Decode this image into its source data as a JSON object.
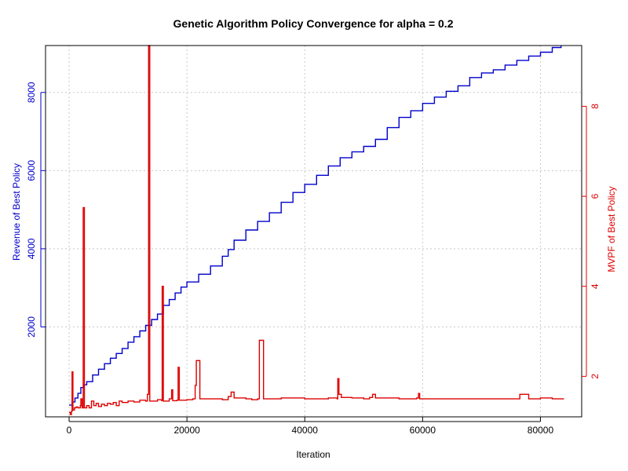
{
  "chart_data": {
    "type": "line",
    "title": "Genetic Algorithm Policy Convergence for alpha = 0.2",
    "xlabel": "Iteration",
    "ylabel_left": "Revenue of Best Policy",
    "ylabel_right": "MVPF of Best Policy",
    "xlim": [
      -4000,
      87000
    ],
    "ylim_left": [
      -300,
      9200
    ],
    "ylim_right": [
      1.1,
      9.35
    ],
    "x_ticks": [
      0,
      20000,
      40000,
      60000,
      80000
    ],
    "y_left_ticks": [
      2000,
      4000,
      6000,
      8000
    ],
    "y_right_ticks": [
      2,
      4,
      6,
      8
    ],
    "grid": true,
    "colors": {
      "revenue": "#0000cc",
      "mvpf": "#dd0000"
    },
    "series": [
      {
        "axis": "left",
        "values": [
          [
            0,
            0
          ],
          [
            500,
            80
          ],
          [
            1000,
            180
          ],
          [
            1500,
            300
          ],
          [
            2000,
            450
          ],
          [
            2500,
            520
          ],
          [
            3000,
            600
          ],
          [
            4000,
            770
          ],
          [
            5000,
            920
          ],
          [
            6000,
            1060
          ],
          [
            7000,
            1200
          ],
          [
            8000,
            1320
          ],
          [
            9000,
            1450
          ],
          [
            10000,
            1610
          ],
          [
            11000,
            1750
          ],
          [
            12000,
            1900
          ],
          [
            13000,
            2040
          ],
          [
            14000,
            2190
          ],
          [
            15000,
            2330
          ],
          [
            16000,
            2550
          ],
          [
            17000,
            2700
          ],
          [
            18000,
            2870
          ],
          [
            19000,
            3020
          ],
          [
            20000,
            3150
          ],
          [
            22000,
            3350
          ],
          [
            24000,
            3560
          ],
          [
            26000,
            3810
          ],
          [
            27000,
            3980
          ],
          [
            28000,
            4220
          ],
          [
            30000,
            4480
          ],
          [
            32000,
            4700
          ],
          [
            34000,
            4920
          ],
          [
            36000,
            5190
          ],
          [
            38000,
            5440
          ],
          [
            40000,
            5650
          ],
          [
            42000,
            5880
          ],
          [
            44000,
            6120
          ],
          [
            46000,
            6330
          ],
          [
            48000,
            6480
          ],
          [
            50000,
            6620
          ],
          [
            52000,
            6800
          ],
          [
            54000,
            7100
          ],
          [
            56000,
            7360
          ],
          [
            58000,
            7530
          ],
          [
            60000,
            7720
          ],
          [
            62000,
            7880
          ],
          [
            64000,
            8030
          ],
          [
            66000,
            8170
          ],
          [
            68000,
            8380
          ],
          [
            70000,
            8500
          ],
          [
            72000,
            8580
          ],
          [
            74000,
            8700
          ],
          [
            76000,
            8820
          ],
          [
            78000,
            8930
          ],
          [
            80000,
            9030
          ],
          [
            82000,
            9150
          ],
          [
            83500,
            9200
          ]
        ]
      },
      {
        "axis": "right",
        "values": [
          [
            0,
            1.2
          ],
          [
            200,
            1.15
          ],
          [
            400,
            1.22
          ],
          [
            500,
            2.1
          ],
          [
            650,
            1.25
          ],
          [
            900,
            1.3
          ],
          [
            1200,
            1.32
          ],
          [
            1500,
            1.3
          ],
          [
            1900,
            1.35
          ],
          [
            2000,
            1.5
          ],
          [
            2200,
            1.3
          ],
          [
            2400,
            5.75
          ],
          [
            2600,
            1.3
          ],
          [
            3000,
            1.35
          ],
          [
            3400,
            1.3
          ],
          [
            3800,
            1.45
          ],
          [
            4200,
            1.35
          ],
          [
            4600,
            1.4
          ],
          [
            5000,
            1.33
          ],
          [
            5500,
            1.38
          ],
          [
            6000,
            1.35
          ],
          [
            6500,
            1.4
          ],
          [
            7000,
            1.38
          ],
          [
            7500,
            1.42
          ],
          [
            8000,
            1.35
          ],
          [
            8500,
            1.45
          ],
          [
            9000,
            1.42
          ],
          [
            10000,
            1.45
          ],
          [
            11000,
            1.43
          ],
          [
            12000,
            1.47
          ],
          [
            13000,
            1.45
          ],
          [
            13300,
            1.6
          ],
          [
            13500,
            9.35
          ],
          [
            13700,
            1.45
          ],
          [
            14500,
            1.45
          ],
          [
            15000,
            1.48
          ],
          [
            15700,
            1.46
          ],
          [
            15800,
            4.0
          ],
          [
            16000,
            1.45
          ],
          [
            17000,
            1.5
          ],
          [
            17400,
            1.7
          ],
          [
            17600,
            1.46
          ],
          [
            18300,
            1.47
          ],
          [
            18500,
            2.2
          ],
          [
            18700,
            1.47
          ],
          [
            20000,
            1.48
          ],
          [
            21000,
            1.5
          ],
          [
            21400,
            1.8
          ],
          [
            21600,
            2.35
          ],
          [
            22000,
            2.35
          ],
          [
            22200,
            1.5
          ],
          [
            24000,
            1.5
          ],
          [
            26000,
            1.48
          ],
          [
            27000,
            1.55
          ],
          [
            27500,
            1.65
          ],
          [
            28000,
            1.52
          ],
          [
            30000,
            1.5
          ],
          [
            31000,
            1.48
          ],
          [
            32000,
            1.5
          ],
          [
            32300,
            2.8
          ],
          [
            32800,
            2.8
          ],
          [
            33000,
            1.5
          ],
          [
            36000,
            1.52
          ],
          [
            40000,
            1.5
          ],
          [
            44000,
            1.52
          ],
          [
            45500,
            1.5
          ],
          [
            45600,
            1.95
          ],
          [
            45800,
            1.6
          ],
          [
            46200,
            1.53
          ],
          [
            48000,
            1.52
          ],
          [
            50000,
            1.5
          ],
          [
            51000,
            1.53
          ],
          [
            51500,
            1.6
          ],
          [
            52000,
            1.52
          ],
          [
            56000,
            1.5
          ],
          [
            59000,
            1.52
          ],
          [
            59300,
            1.62
          ],
          [
            59500,
            1.5
          ],
          [
            64000,
            1.5
          ],
          [
            70000,
            1.5
          ],
          [
            76000,
            1.5
          ],
          [
            76500,
            1.6
          ],
          [
            77500,
            1.6
          ],
          [
            78000,
            1.5
          ],
          [
            80000,
            1.52
          ],
          [
            82000,
            1.5
          ],
          [
            84000,
            1.5
          ]
        ]
      }
    ]
  }
}
